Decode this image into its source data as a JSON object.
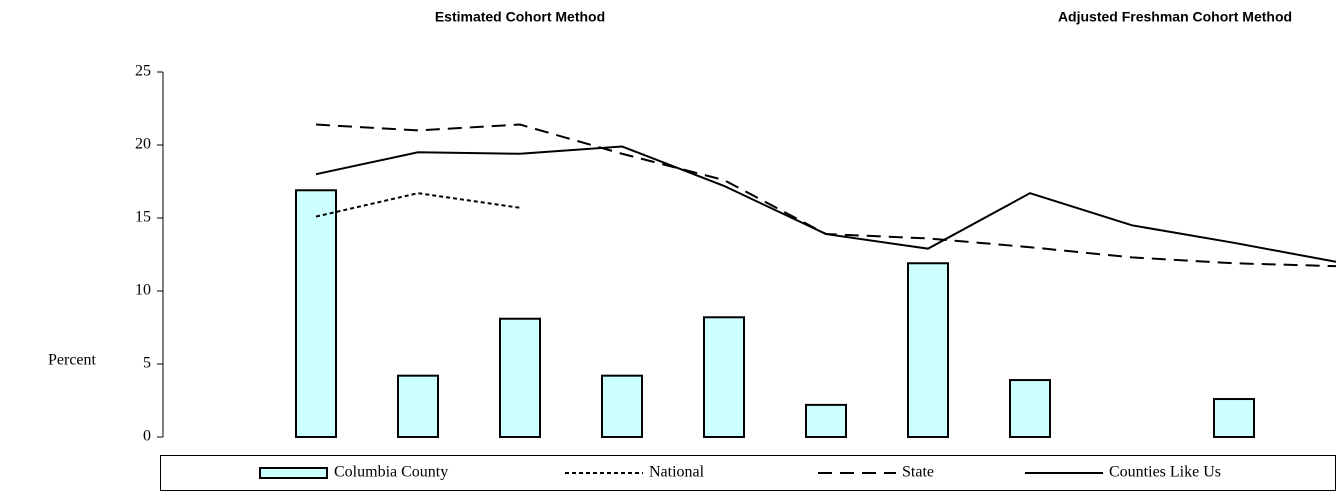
{
  "chart_data": {
    "type": "bar",
    "annotations": [
      "Estimated Cohort Method",
      "Adjusted Freshman Cohort Method"
    ],
    "ylabel": "Percent",
    "categories": [
      null,
      null,
      null,
      null,
      null,
      null,
      null,
      null,
      null,
      null,
      null,
      null
    ],
    "ylim": [
      0,
      25
    ],
    "yticks": [
      0,
      5,
      10,
      15,
      20,
      25
    ],
    "legend": "bottom",
    "series": [
      {
        "name": "Columbia County",
        "type": "bar",
        "color": "#ccffff",
        "values": [
          null,
          16.9,
          4.2,
          8.1,
          4.2,
          8.2,
          2.2,
          11.9,
          3.9,
          null,
          2.6,
          null
        ]
      },
      {
        "name": "National",
        "type": "line",
        "color": "#000000",
        "linestyle": "dotted",
        "values": [
          null,
          15.1,
          16.7,
          15.7,
          null,
          null,
          null,
          null,
          null,
          null,
          null,
          null
        ]
      },
      {
        "name": "State",
        "type": "line",
        "color": "#000000",
        "linestyle": "dashed",
        "values": [
          null,
          21.4,
          21.0,
          21.4,
          19.4,
          17.6,
          13.9,
          13.6,
          13.0,
          12.3,
          11.9,
          11.7
        ]
      },
      {
        "name": "Counties Like Us",
        "type": "line",
        "color": "#000000",
        "linestyle": "solid",
        "values": [
          null,
          18.0,
          19.5,
          19.4,
          19.9,
          17.2,
          13.9,
          12.9,
          16.7,
          14.5,
          13.3,
          12.0
        ]
      }
    ]
  }
}
